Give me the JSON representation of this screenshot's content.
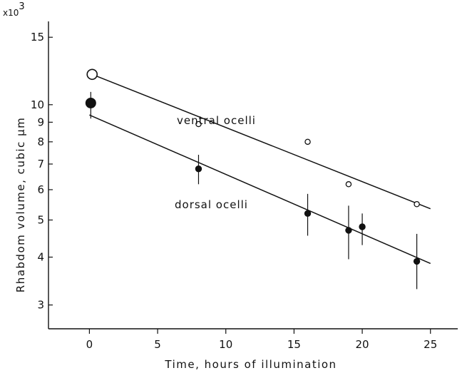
{
  "chart_data": {
    "type": "scatter",
    "xlabel": "Time, hours of illumination",
    "ylabel": "Rhabdom volume, cubic µm",
    "y_multiplier": "x10",
    "y_multiplier_exp": "3",
    "x_scale": "linear",
    "y_scale": "log",
    "xlim": [
      -3,
      27
    ],
    "ylim": [
      2.6,
      16.5
    ],
    "x_ticks": [
      0,
      5,
      10,
      15,
      20,
      25
    ],
    "y_ticks": [
      3,
      4,
      5,
      6,
      7,
      8,
      9,
      10,
      15
    ],
    "grid": false,
    "series": [
      {
        "name": "ventral ocelli",
        "marker": "open-circle",
        "points": [
          {
            "x": 0.2,
            "y": 12.0
          },
          {
            "x": 8,
            "y": 8.9
          },
          {
            "x": 16,
            "y": 8.0
          },
          {
            "x": 19,
            "y": 6.2
          },
          {
            "x": 24,
            "y": 5.5
          }
        ],
        "fit_line": [
          {
            "x": 0.2,
            "y": 12.0
          },
          {
            "x": 25,
            "y": 5.35
          }
        ]
      },
      {
        "name": "dorsal ocelli",
        "marker": "filled-circle",
        "points": [
          {
            "x": 0.1,
            "y": 10.1,
            "err_low": 9.2,
            "err_high": 10.8
          },
          {
            "x": 8,
            "y": 6.8,
            "err_low": 6.2,
            "err_high": 7.4
          },
          {
            "x": 16,
            "y": 5.2,
            "err_low": 4.55,
            "err_high": 5.85
          },
          {
            "x": 19,
            "y": 4.7,
            "err_low": 3.95,
            "err_high": 5.45
          },
          {
            "x": 20,
            "y": 4.8,
            "err_low": 4.3,
            "err_high": 5.2
          },
          {
            "x": 24,
            "y": 3.9,
            "err_low": 3.3,
            "err_high": 4.6
          }
        ],
        "fit_line": [
          {
            "x": 0,
            "y": 9.4
          },
          {
            "x": 25,
            "y": 3.85
          }
        ]
      }
    ]
  }
}
